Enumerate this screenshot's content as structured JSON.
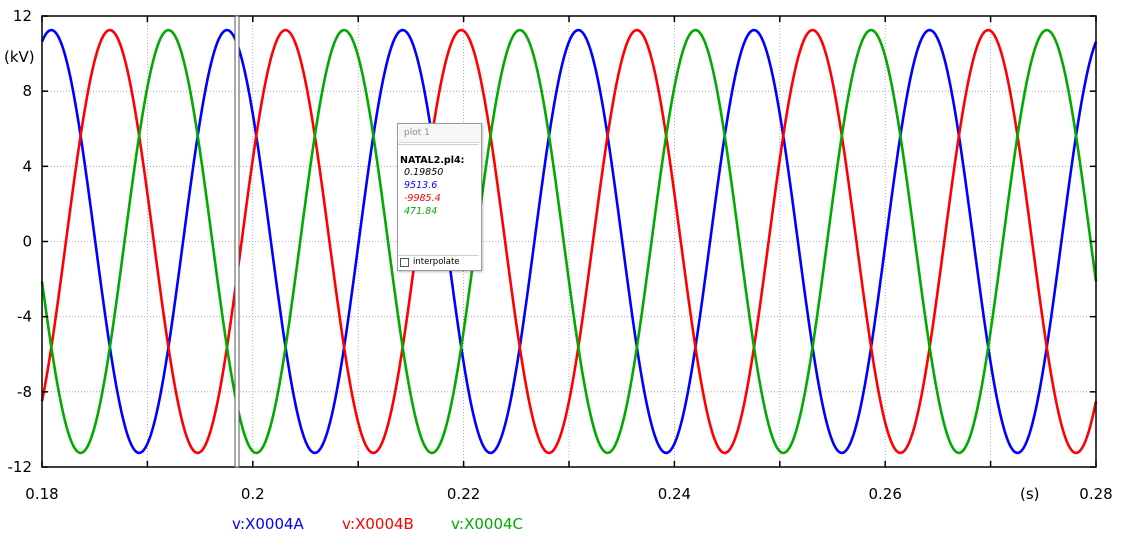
{
  "chart_data": {
    "type": "line",
    "title": "",
    "xlabel": "(s)",
    "ylabel": "(kV)",
    "xlim": [
      0.18,
      0.28
    ],
    "ylim": [
      -12,
      12
    ],
    "x_ticks": [
      0.18,
      0.2,
      0.22,
      0.24,
      0.26,
      0.28
    ],
    "x_tick_labels": [
      "0.18",
      "0.2",
      "0.22",
      "0.24",
      "0.26",
      "0.28"
    ],
    "y_ticks": [
      12,
      8,
      4,
      0,
      -4,
      -8,
      -12
    ],
    "y_tick_labels": [
      "12",
      "8",
      "4",
      "0",
      "-4",
      "-8",
      "-12"
    ],
    "grid": true,
    "legend_position": "bottom",
    "frequency_hz": 60,
    "series": [
      {
        "name": "v:X0004A",
        "color": "#0000ff",
        "amplitude_kv": 11.25,
        "phase_deg": 70.9
      },
      {
        "name": "v:X0004B",
        "color": "#ff0000",
        "amplitude_kv": 11.25,
        "phase_deg": -49.1
      },
      {
        "name": "v:X0004C",
        "color": "#00aa00",
        "amplitude_kv": 11.25,
        "phase_deg": -169.1
      }
    ],
    "cursor_x": 0.1985
  },
  "popup": {
    "title": "plot 1",
    "file": "NATAL2.pl4:",
    "values": [
      {
        "text": "0.19850",
        "color": "#000000"
      },
      {
        "text": "9513.6",
        "color": "#0000ff"
      },
      {
        "text": "-9985.4",
        "color": "#ff0000"
      },
      {
        "text": "471.84",
        "color": "#00aa00"
      }
    ],
    "interpolate_label": "interpolate"
  }
}
